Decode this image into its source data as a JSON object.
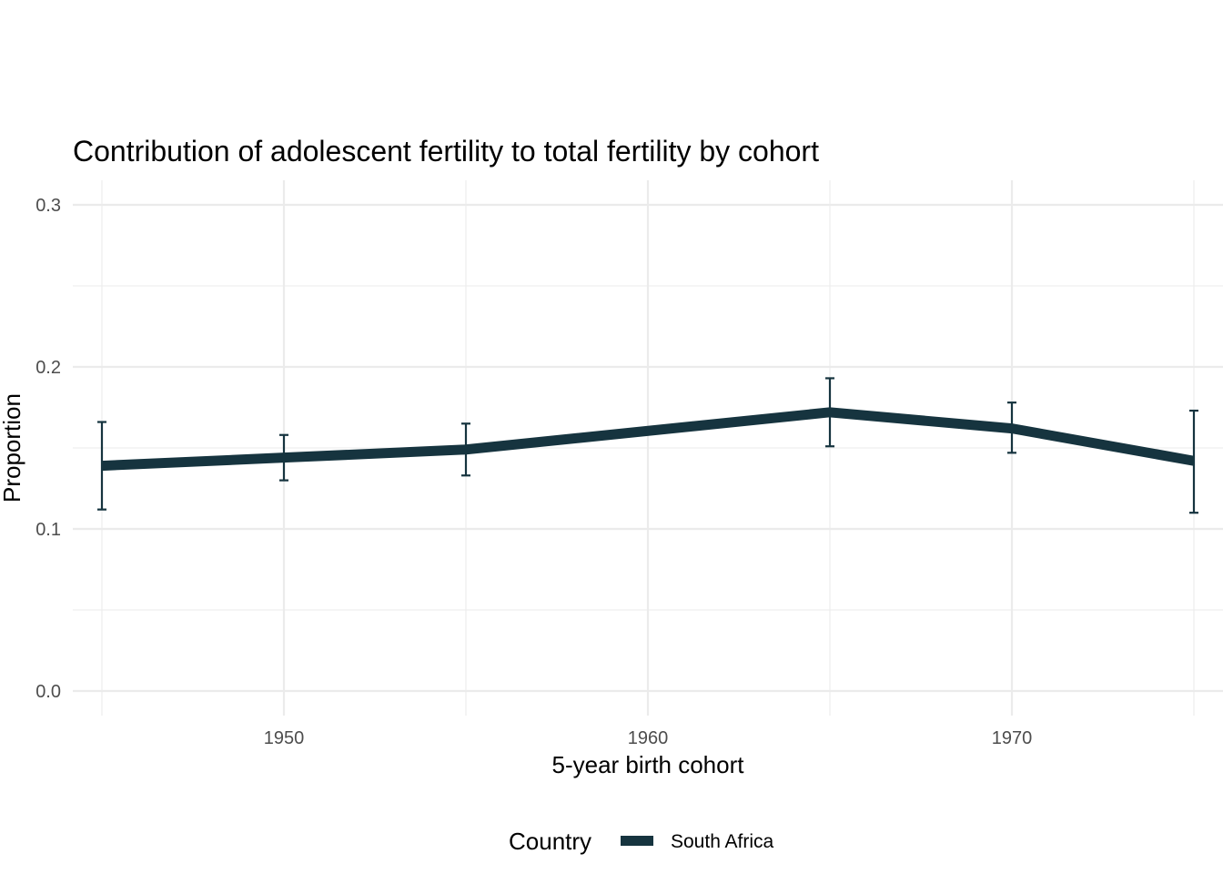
{
  "chart_data": {
    "type": "line",
    "title": "Contribution of adolescent fertility to total fertility by cohort",
    "xlabel": "5-year birth cohort",
    "ylabel": "Proportion",
    "xlim": [
      1944.2,
      1975.8
    ],
    "ylim": [
      0,
      0.3
    ],
    "x_ticks": [
      1950,
      1960,
      1970
    ],
    "y_ticks": [
      0.0,
      0.1,
      0.2,
      0.3
    ],
    "y_tick_labels": [
      "0.0",
      "0.1",
      "0.2",
      "0.3"
    ],
    "x_tick_labels": [
      "1950",
      "1960",
      "1970"
    ],
    "grid": true,
    "legend": {
      "title": "Country",
      "position": "bottom"
    },
    "series": [
      {
        "name": "South Africa",
        "color": "#16343f",
        "x": [
          1945,
          1950,
          1955,
          1965,
          1970,
          1975
        ],
        "y": [
          0.139,
          0.144,
          0.149,
          0.172,
          0.162,
          0.142
        ],
        "error_low": [
          0.112,
          0.13,
          0.133,
          0.151,
          0.147,
          0.11
        ],
        "error_high": [
          0.166,
          0.158,
          0.165,
          0.193,
          0.178,
          0.173
        ]
      }
    ]
  }
}
